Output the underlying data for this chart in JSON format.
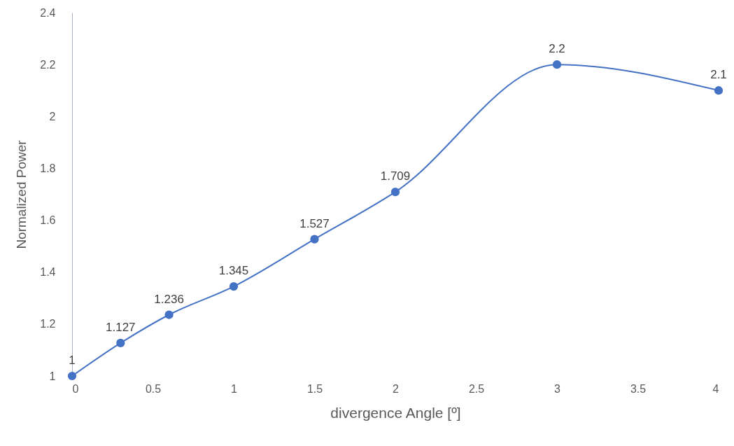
{
  "chart_data": {
    "type": "line",
    "xlabel": "divergence Angle [º]",
    "ylabel": "Normalized Power",
    "x": [
      0,
      0.3,
      0.6,
      1,
      1.5,
      2,
      3,
      4
    ],
    "series": [
      {
        "color": "#4472c4",
        "values": [
          1,
          1.127,
          1.236,
          1.345,
          1.527,
          1.709,
          2.2,
          2.1
        ]
      }
    ],
    "xlim": [
      0,
      4
    ],
    "xticks": [
      0,
      0.5,
      1,
      1.5,
      2,
      2.5,
      3,
      3.5,
      4
    ],
    "ylim": [
      1,
      2.4
    ],
    "yticks": [
      1,
      1.2,
      1.4,
      1.6,
      1.8,
      2,
      2.2,
      2.4
    ],
    "grid": false,
    "marker": "circle",
    "line_style": "solid",
    "data_labels": true
  }
}
